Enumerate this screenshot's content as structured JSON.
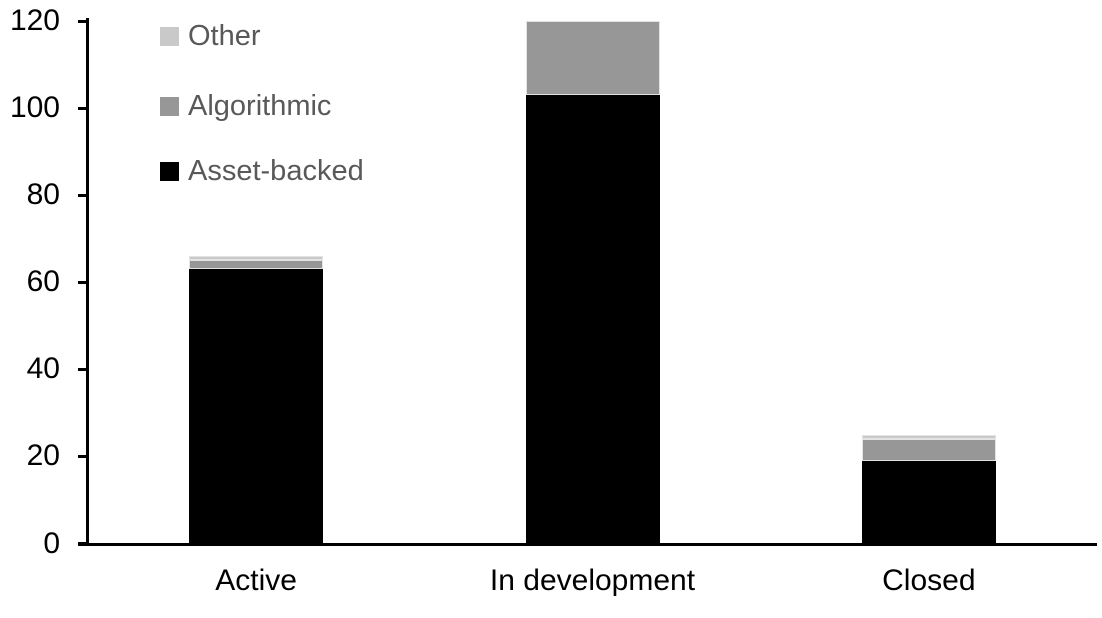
{
  "chart_data": {
    "type": "bar",
    "stacked": true,
    "title": "",
    "xlabel": "",
    "ylabel": "",
    "categories": [
      "Active",
      "In development",
      "Closed"
    ],
    "series": [
      {
        "name": "Asset-backed",
        "color": "#000000",
        "values": [
          63,
          103,
          19
        ]
      },
      {
        "name": "Algorithmic",
        "color": "#979797",
        "values": [
          2,
          17,
          5
        ]
      },
      {
        "name": "Other",
        "color": "#c9c9c9",
        "values": [
          1,
          0,
          1
        ]
      }
    ],
    "totals": [
      66,
      120,
      25
    ],
    "ylim": [
      0,
      120
    ],
    "y_ticks": [
      0,
      20,
      40,
      60,
      80,
      100,
      120
    ],
    "grid": false,
    "legend_position": "top-left"
  },
  "legend": {
    "text_color": "#595959",
    "items": [
      {
        "label": "Other",
        "color": "#c9c9c9"
      },
      {
        "label": "Algorithmic",
        "color": "#979797"
      },
      {
        "label": "Asset-backed",
        "color": "#000000"
      }
    ]
  },
  "axis": {
    "line_color": "#000000",
    "tick_label_color": "#000000"
  }
}
